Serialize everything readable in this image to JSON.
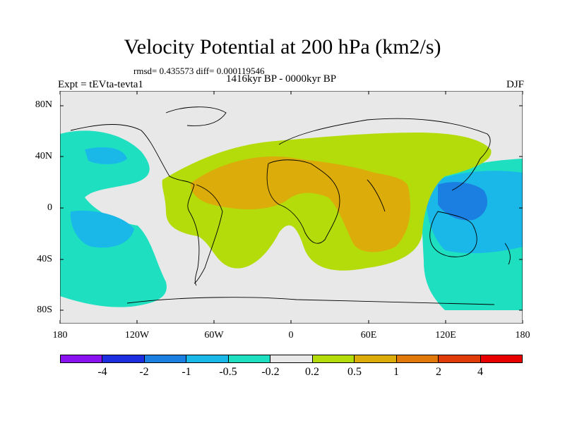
{
  "title": "Velocity Potential at 200 hPa (km2/s)",
  "stats": "rmsd= 0.435573  diff= 0.000119546",
  "period": "1416kyr BP - 0000kyr BP",
  "experiment": "Expt = tEVta-tevta1",
  "season": "DJF",
  "y_ticks": [
    "80N",
    "40N",
    "0",
    "40S",
    "80S"
  ],
  "x_ticks": [
    "180",
    "120W",
    "60W",
    "0",
    "60E",
    "120E",
    "180"
  ],
  "colorbar": {
    "labels": [
      "-4",
      "-2",
      "-1",
      "-0.5",
      "-0.2",
      "0.2",
      "0.5",
      "1",
      "2",
      "4"
    ],
    "colors": [
      "#8a12f0",
      "#1d2ee0",
      "#1a7fe0",
      "#1ab8e8",
      "#1ee0c0",
      "#e8e8e8",
      "#b4dc0a",
      "#dcac0a",
      "#e0780a",
      "#e03c0a",
      "#e80000"
    ]
  },
  "map_colors": {
    "neutral": "#e8e8e8",
    "teal": "#1ee0c0",
    "cyan": "#1ab8e8",
    "blue": "#1a7fe0",
    "lime": "#b4dc0a",
    "orange": "#dcac0a",
    "coast": "#000000"
  }
}
